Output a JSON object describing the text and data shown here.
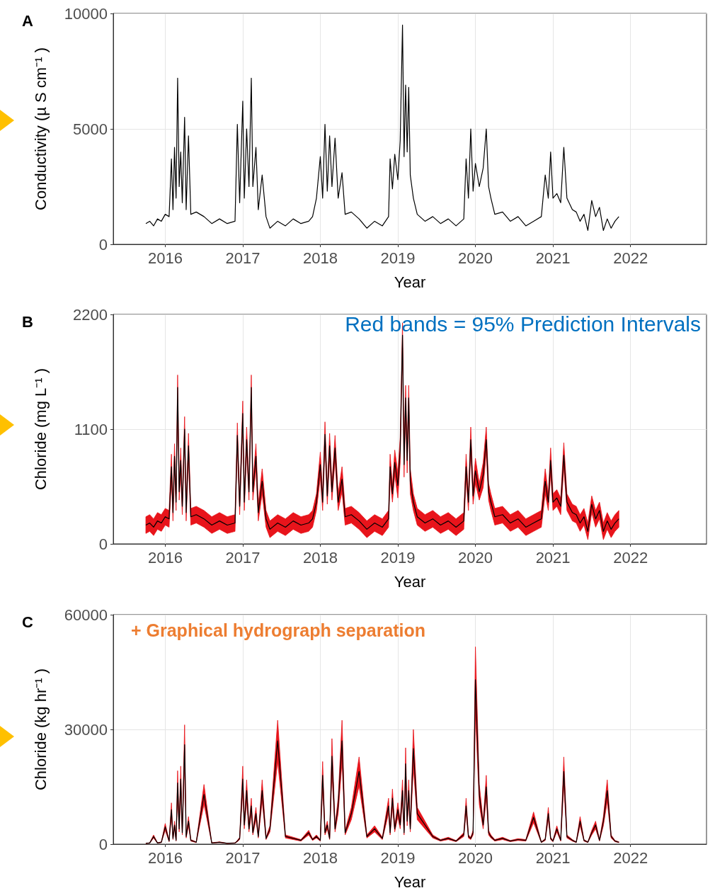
{
  "chart_data": [
    {
      "type": "line",
      "title": "A",
      "xlabel": "Year",
      "ylabel": "Conductivity (µ S cm⁻¹ )",
      "xlim": [
        2015.33,
        2022.98
      ],
      "xticks": [
        2016,
        2017,
        2018,
        2019,
        2020,
        2021,
        2022
      ],
      "ylim": [
        0,
        10000
      ],
      "yticks": [
        0,
        5000,
        10000
      ],
      "grid": true,
      "x": [
        2015.75,
        2015.8,
        2015.85,
        2015.9,
        2015.95,
        2016.0,
        2016.05,
        2016.08,
        2016.1,
        2016.12,
        2016.14,
        2016.16,
        2016.18,
        2016.2,
        2016.22,
        2016.25,
        2016.27,
        2016.3,
        2016.33,
        2016.4,
        2016.5,
        2016.6,
        2016.7,
        2016.8,
        2016.9,
        2016.93,
        2016.96,
        2017.0,
        2017.02,
        2017.05,
        2017.08,
        2017.11,
        2017.13,
        2017.17,
        2017.2,
        2017.25,
        2017.3,
        2017.35,
        2017.45,
        2017.55,
        2017.65,
        2017.75,
        2017.85,
        2017.9,
        2017.95,
        2018.0,
        2018.03,
        2018.06,
        2018.09,
        2018.12,
        2018.15,
        2018.19,
        2018.23,
        2018.28,
        2018.32,
        2018.4,
        2018.5,
        2018.6,
        2018.7,
        2018.8,
        2018.88,
        2018.9,
        2018.93,
        2018.96,
        2019.0,
        2019.03,
        2019.06,
        2019.08,
        2019.1,
        2019.12,
        2019.14,
        2019.16,
        2019.2,
        2019.25,
        2019.35,
        2019.45,
        2019.55,
        2019.65,
        2019.75,
        2019.85,
        2019.88,
        2019.91,
        2019.94,
        2019.97,
        2020.0,
        2020.05,
        2020.1,
        2020.14,
        2020.17,
        2020.2,
        2020.25,
        2020.35,
        2020.45,
        2020.55,
        2020.65,
        2020.75,
        2020.85,
        2020.9,
        2020.94,
        2020.97,
        2021.0,
        2021.05,
        2021.1,
        2021.14,
        2021.18,
        2021.25,
        2021.3,
        2021.35,
        2021.4,
        2021.45,
        2021.5,
        2021.55,
        2021.6,
        2021.65,
        2021.7,
        2021.75,
        2021.8,
        2021.85
      ],
      "series": [
        {
          "color": "#000000",
          "values": [
            900,
            1000,
            800,
            1100,
            1000,
            1300,
            1200,
            3700,
            1500,
            4200,
            2000,
            7200,
            2500,
            4000,
            1800,
            5500,
            1500,
            4700,
            1300,
            1400,
            1200,
            900,
            1100,
            900,
            1000,
            5200,
            1800,
            6200,
            2000,
            5000,
            2500,
            7200,
            2500,
            4200,
            1500,
            3000,
            1200,
            700,
            1000,
            800,
            1100,
            900,
            1000,
            1200,
            2000,
            3800,
            2000,
            5200,
            2300,
            4700,
            2500,
            4600,
            2000,
            3100,
            1300,
            1400,
            1100,
            700,
            1000,
            800,
            1200,
            3700,
            2400,
            3900,
            2800,
            4500,
            9500,
            3800,
            6900,
            4000,
            6800,
            3000,
            2000,
            1300,
            1000,
            1200,
            900,
            1100,
            800,
            1100,
            3700,
            2000,
            5000,
            2300,
            3500,
            2500,
            3300,
            5000,
            2500,
            2000,
            1300,
            1400,
            1000,
            1200,
            800,
            1000,
            1200,
            3000,
            2000,
            4000,
            2000,
            2200,
            1800,
            4200,
            2000,
            1500,
            1400,
            1000,
            1300,
            600,
            1900,
            1200,
            1600,
            600,
            1100,
            700,
            1000,
            1200
          ]
        }
      ]
    },
    {
      "type": "line",
      "title": "B",
      "xlabel": "Year",
      "ylabel": "Chloride (mg L⁻¹ )",
      "xlim": [
        2015.33,
        2022.98
      ],
      "xticks": [
        2016,
        2017,
        2018,
        2019,
        2020,
        2021,
        2022
      ],
      "ylim": [
        0,
        2200
      ],
      "yticks": [
        0,
        1100,
        2200
      ],
      "grid": true,
      "annotations": [
        "Red bands = 95% Prediction Intervals"
      ],
      "x": [
        2015.75,
        2015.8,
        2015.85,
        2015.9,
        2015.95,
        2016.0,
        2016.05,
        2016.08,
        2016.1,
        2016.12,
        2016.14,
        2016.16,
        2016.18,
        2016.2,
        2016.22,
        2016.25,
        2016.27,
        2016.3,
        2016.33,
        2016.4,
        2016.5,
        2016.6,
        2016.7,
        2016.8,
        2016.9,
        2016.93,
        2016.96,
        2017.0,
        2017.02,
        2017.05,
        2017.08,
        2017.11,
        2017.13,
        2017.17,
        2017.2,
        2017.25,
        2017.3,
        2017.35,
        2017.45,
        2017.55,
        2017.65,
        2017.75,
        2017.85,
        2017.9,
        2017.95,
        2018.0,
        2018.03,
        2018.06,
        2018.09,
        2018.12,
        2018.15,
        2018.19,
        2018.23,
        2018.28,
        2018.32,
        2018.4,
        2018.5,
        2018.6,
        2018.7,
        2018.8,
        2018.88,
        2018.9,
        2018.93,
        2018.96,
        2019.0,
        2019.03,
        2019.06,
        2019.08,
        2019.1,
        2019.12,
        2019.14,
        2019.16,
        2019.2,
        2019.25,
        2019.35,
        2019.45,
        2019.55,
        2019.65,
        2019.75,
        2019.85,
        2019.88,
        2019.91,
        2019.94,
        2019.97,
        2020.0,
        2020.05,
        2020.1,
        2020.14,
        2020.17,
        2020.2,
        2020.25,
        2020.35,
        2020.45,
        2020.55,
        2020.65,
        2020.75,
        2020.85,
        2020.9,
        2020.94,
        2020.97,
        2021.0,
        2021.05,
        2021.1,
        2021.14,
        2021.18,
        2021.25,
        2021.3,
        2021.35,
        2021.4,
        2021.45,
        2021.5,
        2021.55,
        2021.6,
        2021.65,
        2021.7,
        2021.75,
        2021.8,
        2021.85
      ],
      "series": [
        {
          "color": "#000000",
          "values": [
            180,
            200,
            160,
            220,
            200,
            260,
            240,
            740,
            300,
            840,
            400,
            1500,
            500,
            800,
            360,
            1100,
            300,
            940,
            260,
            280,
            240,
            180,
            220,
            180,
            200,
            1040,
            360,
            1250,
            400,
            1000,
            500,
            1500,
            500,
            840,
            300,
            600,
            240,
            140,
            200,
            160,
            220,
            180,
            200,
            240,
            400,
            760,
            400,
            1050,
            460,
            940,
            500,
            920,
            400,
            620,
            260,
            280,
            220,
            140,
            200,
            160,
            240,
            740,
            480,
            780,
            560,
            900,
            2000,
            760,
            1400,
            800,
            1400,
            600,
            400,
            260,
            200,
            240,
            180,
            220,
            160,
            220,
            740,
            400,
            1000,
            460,
            700,
            500,
            660,
            1000,
            500,
            400,
            260,
            280,
            200,
            240,
            160,
            200,
            240,
            600,
            400,
            800,
            400,
            440,
            360,
            850,
            400,
            300,
            280,
            200,
            260,
            120,
            380,
            240,
            320,
            120,
            220,
            140,
            200,
            240
          ],
          "lower": [
            100,
            120,
            80,
            140,
            120,
            180,
            160,
            620,
            220,
            720,
            320,
            1380,
            420,
            680,
            280,
            980,
            220,
            820,
            180,
            200,
            160,
            100,
            140,
            100,
            120,
            920,
            280,
            1130,
            320,
            880,
            420,
            1380,
            420,
            720,
            220,
            480,
            160,
            60,
            120,
            80,
            140,
            100,
            120,
            160,
            320,
            640,
            320,
            930,
            380,
            820,
            420,
            800,
            320,
            500,
            180,
            200,
            140,
            60,
            120,
            80,
            160,
            620,
            400,
            660,
            440,
            780,
            1880,
            640,
            1280,
            680,
            1280,
            480,
            320,
            180,
            120,
            160,
            100,
            140,
            80,
            140,
            620,
            320,
            880,
            380,
            580,
            420,
            540,
            880,
            420,
            320,
            180,
            200,
            120,
            160,
            80,
            120,
            160,
            480,
            320,
            680,
            320,
            360,
            280,
            730,
            320,
            220,
            200,
            120,
            180,
            40,
            300,
            160,
            240,
            40,
            140,
            60,
            120,
            160
          ],
          "upper": [
            260,
            280,
            240,
            300,
            280,
            340,
            320,
            860,
            380,
            960,
            480,
            1620,
            580,
            920,
            440,
            1220,
            380,
            1060,
            340,
            360,
            320,
            260,
            300,
            260,
            280,
            1160,
            440,
            1370,
            480,
            1120,
            580,
            1620,
            580,
            960,
            380,
            720,
            320,
            220,
            280,
            240,
            300,
            260,
            280,
            320,
            480,
            880,
            480,
            1170,
            540,
            1060,
            580,
            1040,
            480,
            740,
            340,
            360,
            300,
            220,
            280,
            240,
            320,
            860,
            560,
            900,
            680,
            1020,
            2120,
            880,
            1520,
            920,
            1520,
            720,
            480,
            340,
            280,
            320,
            260,
            300,
            240,
            300,
            860,
            480,
            1120,
            540,
            820,
            580,
            780,
            1120,
            580,
            480,
            340,
            360,
            280,
            320,
            240,
            280,
            320,
            720,
            480,
            920,
            480,
            520,
            440,
            970,
            480,
            380,
            360,
            280,
            340,
            200,
            460,
            320,
            400,
            200,
            300,
            220,
            280,
            320
          ]
        }
      ]
    },
    {
      "type": "line",
      "title": "C",
      "xlabel": "Year",
      "ylabel": "Chloride (kg hr⁻¹ )",
      "xlim": [
        2015.33,
        2022.98
      ],
      "xticks": [
        2016,
        2017,
        2018,
        2019,
        2020,
        2021,
        2022
      ],
      "ylim": [
        0,
        60000
      ],
      "yticks": [
        0,
        30000,
        60000
      ],
      "grid": true,
      "annotations": [
        "+ Graphical hydrograph separation"
      ],
      "x": [
        2015.75,
        2015.8,
        2015.85,
        2015.9,
        2015.95,
        2016.0,
        2016.05,
        2016.08,
        2016.1,
        2016.12,
        2016.14,
        2016.16,
        2016.18,
        2016.2,
        2016.22,
        2016.25,
        2016.27,
        2016.3,
        2016.33,
        2016.4,
        2016.5,
        2016.6,
        2016.7,
        2016.8,
        2016.9,
        2016.93,
        2016.96,
        2017.0,
        2017.02,
        2017.05,
        2017.08,
        2017.11,
        2017.13,
        2017.17,
        2017.2,
        2017.25,
        2017.3,
        2017.35,
        2017.45,
        2017.55,
        2017.65,
        2017.75,
        2017.85,
        2017.9,
        2017.95,
        2018.0,
        2018.03,
        2018.06,
        2018.09,
        2018.12,
        2018.15,
        2018.19,
        2018.23,
        2018.28,
        2018.32,
        2018.4,
        2018.5,
        2018.6,
        2018.7,
        2018.8,
        2018.88,
        2018.9,
        2018.93,
        2018.96,
        2019.0,
        2019.03,
        2019.06,
        2019.08,
        2019.1,
        2019.12,
        2019.14,
        2019.16,
        2019.2,
        2019.25,
        2019.35,
        2019.45,
        2019.55,
        2019.65,
        2019.75,
        2019.85,
        2019.88,
        2019.91,
        2019.94,
        2019.97,
        2020.0,
        2020.05,
        2020.1,
        2020.14,
        2020.17,
        2020.2,
        2020.25,
        2020.35,
        2020.45,
        2020.55,
        2020.65,
        2020.75,
        2020.85,
        2020.9,
        2020.94,
        2020.97,
        2021.0,
        2021.05,
        2021.1,
        2021.14,
        2021.18,
        2021.25,
        2021.3,
        2021.35,
        2021.4,
        2021.45,
        2021.5,
        2021.55,
        2021.6,
        2021.65,
        2021.7,
        2021.75,
        2021.8,
        2021.85
      ],
      "series": [
        {
          "color": "#000000",
          "values": [
            200,
            300,
            2000,
            300,
            500,
            4500,
            800,
            9000,
            1500,
            5000,
            1000,
            16000,
            4000,
            17000,
            3000,
            26000,
            2000,
            6000,
            1000,
            500,
            13000,
            300,
            500,
            200,
            300,
            800,
            1500,
            17000,
            5000,
            14000,
            4000,
            10000,
            3000,
            8000,
            2000,
            14000,
            1500,
            4000,
            27000,
            2000,
            1500,
            1000,
            3000,
            1200,
            2000,
            1000,
            18000,
            3000,
            5000,
            1500,
            23000,
            4000,
            10000,
            27000,
            3000,
            8000,
            19000,
            2000,
            4000,
            1500,
            10000,
            3000,
            12000,
            4000,
            9000,
            5000,
            14000,
            3000,
            21000,
            6000,
            14000,
            4000,
            25000,
            8000,
            5000,
            2000,
            1000,
            1500,
            800,
            2500,
            10000,
            2000,
            1500,
            3000,
            43000,
            13000,
            5000,
            15000,
            3000,
            2000,
            1000,
            1500,
            800,
            1200,
            1000,
            7000,
            500,
            1200,
            8000,
            1500,
            800,
            4000,
            1000,
            19000,
            2000,
            1000,
            500,
            6000,
            1000,
            500,
            3000,
            5000,
            1000,
            6000,
            14000,
            2000,
            800,
            500
          ],
          "lower": [
            160,
            240,
            1600,
            240,
            400,
            3600,
            640,
            7200,
            1200,
            4000,
            800,
            12800,
            3200,
            13600,
            2400,
            20800,
            1600,
            4800,
            800,
            400,
            10400,
            240,
            400,
            160,
            240,
            640,
            1200,
            13600,
            4000,
            11200,
            3200,
            8000,
            2400,
            6400,
            1600,
            11200,
            1200,
            3200,
            21600,
            1600,
            1200,
            800,
            2400,
            960,
            1600,
            800,
            14400,
            2400,
            4000,
            1200,
            18400,
            3200,
            8000,
            21600,
            2400,
            6400,
            15200,
            1600,
            3200,
            1200,
            8000,
            2400,
            9600,
            3200,
            7200,
            4000,
            11200,
            2400,
            16800,
            4800,
            11200,
            3200,
            20000,
            6400,
            4000,
            1600,
            800,
            1200,
            640,
            2000,
            8000,
            1600,
            1200,
            2400,
            34400,
            10400,
            4000,
            12000,
            2400,
            1600,
            800,
            1200,
            640,
            960,
            800,
            5600,
            400,
            960,
            6400,
            1200,
            640,
            3200,
            800,
            15200,
            1600,
            800,
            400,
            4800,
            800,
            400,
            2400,
            4000,
            800,
            4800,
            11200,
            1600,
            640,
            400
          ],
          "upper": [
            240,
            360,
            2400,
            360,
            600,
            5400,
            960,
            10800,
            1800,
            6000,
            1200,
            19200,
            4800,
            20400,
            3600,
            31200,
            2400,
            7200,
            1200,
            600,
            15600,
            360,
            600,
            240,
            360,
            960,
            1800,
            20400,
            6000,
            16800,
            4800,
            12000,
            3600,
            9600,
            2400,
            16800,
            1800,
            4800,
            32400,
            2400,
            1800,
            1200,
            3600,
            1440,
            2400,
            1200,
            21600,
            3600,
            6000,
            1800,
            27600,
            4800,
            12000,
            32400,
            3600,
            9600,
            22800,
            2400,
            4800,
            1800,
            12000,
            3600,
            14400,
            4800,
            10800,
            6000,
            16800,
            3600,
            25200,
            7200,
            16800,
            4800,
            30000,
            9600,
            6000,
            2400,
            1200,
            1800,
            960,
            3000,
            12000,
            2400,
            1800,
            3600,
            51600,
            15600,
            6000,
            18000,
            3600,
            2400,
            1200,
            1800,
            960,
            1440,
            1200,
            8400,
            600,
            1440,
            9600,
            1800,
            960,
            4800,
            1200,
            22800,
            2400,
            1200,
            600,
            7200,
            1200,
            600,
            3600,
            6000,
            1200,
            7200,
            16800,
            2400,
            960,
            600
          ]
        }
      ]
    }
  ]
}
